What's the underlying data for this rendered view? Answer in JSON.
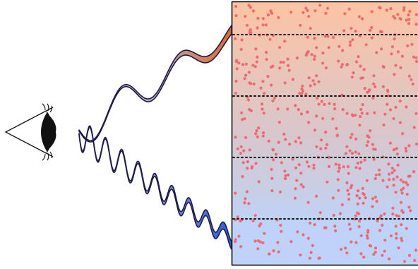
{
  "figure": {
    "observer": {
      "icon": "eye-icon"
    },
    "rays": [
      {
        "name": "upper-ray",
        "from_color": "#b7b6d6",
        "to_color": "#e06a2a",
        "outline": "#1d1b4a"
      },
      {
        "name": "lower-ray",
        "from_color": "#c4b4c6",
        "to_color": "#2f5fd8",
        "outline": "#1d1b4a"
      }
    ],
    "medium": {
      "gradient_top": "#fdc4a2",
      "gradient_mid": "#d9c6cc",
      "gradient_bottom": "#bed3f7",
      "particle_color": "#ee6a72",
      "layer_count": 4,
      "border_color": "#000000"
    }
  }
}
